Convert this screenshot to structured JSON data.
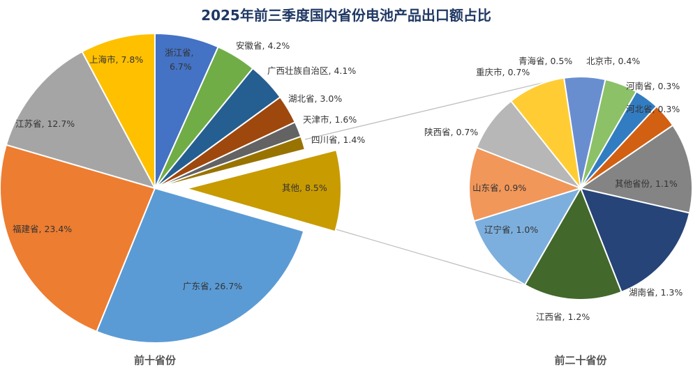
{
  "chart_data": {
    "type": "pie",
    "subtype": "pie-of-pie",
    "title": "2025年前三季度国内省份电池产品出口额占比",
    "unit": "%",
    "pies": [
      {
        "caption": "前十省份",
        "slices": [
          {
            "label": "浙江省",
            "value": 6.7,
            "color": "#4472C4"
          },
          {
            "label": "安徽省",
            "value": 4.2,
            "color": "#70AD47"
          },
          {
            "label": "广西壮族自治区",
            "value": 4.1,
            "color": "#255E91"
          },
          {
            "label": "湖北省",
            "value": 3.0,
            "color": "#9E480E"
          },
          {
            "label": "天津市",
            "value": 1.6,
            "color": "#636363"
          },
          {
            "label": "四川省",
            "value": 1.4,
            "color": "#997300"
          },
          {
            "label": "其他",
            "value": 8.5,
            "color": "#C89B00",
            "exploded": true
          },
          {
            "label": "广东省",
            "value": 26.7,
            "color": "#5B9BD5"
          },
          {
            "label": "福建省",
            "value": 23.4,
            "color": "#ED7D31"
          },
          {
            "label": "江苏省",
            "value": 12.7,
            "color": "#A5A5A5"
          },
          {
            "label": "上海市",
            "value": 7.8,
            "color": "#FFC000"
          }
        ]
      },
      {
        "caption": "前二十省份",
        "slices": [
          {
            "label": "青海省",
            "value": 0.5,
            "color": "#698ED0"
          },
          {
            "label": "北京市",
            "value": 0.4,
            "color": "#8CC168"
          },
          {
            "label": "河南省",
            "value": 0.3,
            "color": "#327DC2"
          },
          {
            "label": "河北省",
            "value": 0.3,
            "color": "#D26012"
          },
          {
            "label": "其他省份",
            "value": 1.1,
            "color": "#848484"
          },
          {
            "label": "湖南省",
            "value": 1.3,
            "color": "#264478"
          },
          {
            "label": "江西省",
            "value": 1.2,
            "color": "#43682B"
          },
          {
            "label": "辽宁省",
            "value": 1.0,
            "color": "#7CAFDD"
          },
          {
            "label": "山东省",
            "value": 0.9,
            "color": "#F1975A"
          },
          {
            "label": "陕西省",
            "value": 0.7,
            "color": "#B7B7B7"
          },
          {
            "label": "重庆市",
            "value": 0.7,
            "color": "#FFCD33"
          }
        ]
      }
    ]
  }
}
